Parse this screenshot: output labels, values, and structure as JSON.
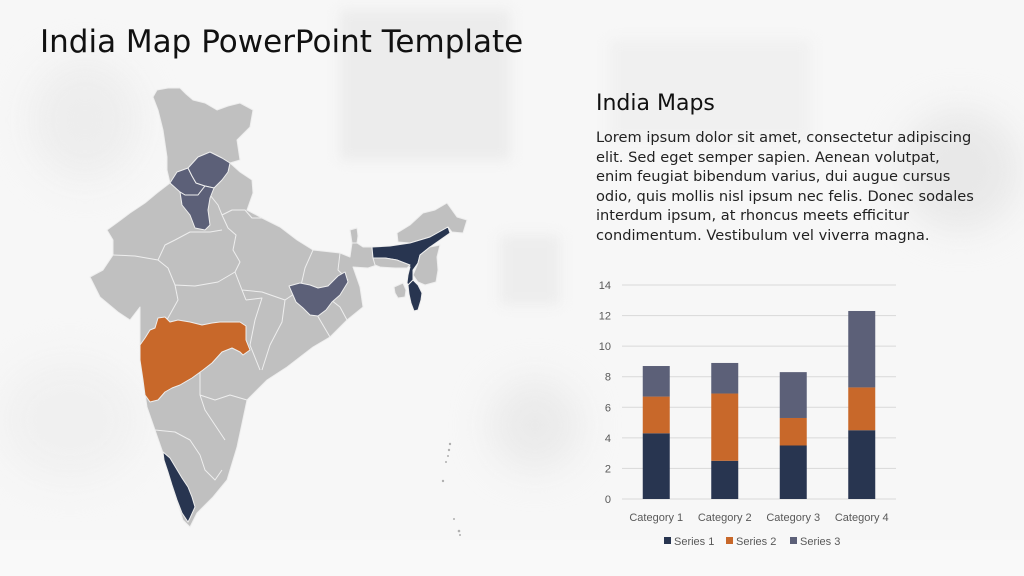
{
  "slide": {
    "title": "India Map PowerPoint Template",
    "section_title": "India Maps",
    "body": "Lorem ipsum dolor sit amet, consectetur adipiscing elit. Sed eget semper sapien. Aenean volutpat, enim feugiat bibendum varius, dui augue cursus odio, quis mollis nisl ipsum nec felis. Donec sodales interdum ipsum, at rhoncus meets efficitur condimentum. Vestibulum vel viverra magna."
  },
  "colors": {
    "map_default": "#c0c0c0",
    "map_border": "#eeeeee",
    "series1": "#283550",
    "series2": "#c8682a",
    "series3": "#5c6078",
    "gridline": "#d9d9d9",
    "axis_text": "#595959"
  },
  "map": {
    "regions": [
      {
        "name": "Jammu and Kashmir",
        "highlight": "none"
      },
      {
        "name": "Himachal Pradesh",
        "highlight": "series3"
      },
      {
        "name": "Punjab",
        "highlight": "series3"
      },
      {
        "name": "Haryana",
        "highlight": "series3"
      },
      {
        "name": "Jharkhand",
        "highlight": "series3"
      },
      {
        "name": "Maharashtra",
        "highlight": "series2"
      },
      {
        "name": "Assam",
        "highlight": "series1"
      },
      {
        "name": "Mizoram",
        "highlight": "series1"
      },
      {
        "name": "Kerala",
        "highlight": "series1"
      }
    ]
  },
  "chart_data": {
    "type": "bar",
    "stacked": true,
    "title": "",
    "xlabel": "",
    "ylabel": "",
    "categories": [
      "Category 1",
      "Category 2",
      "Category 3",
      "Category 4"
    ],
    "series": [
      {
        "name": "Series 1",
        "color": "#283550",
        "values": [
          4.3,
          2.5,
          3.5,
          4.5
        ]
      },
      {
        "name": "Series 2",
        "color": "#c8682a",
        "values": [
          2.4,
          4.4,
          1.8,
          2.8
        ]
      },
      {
        "name": "Series 3",
        "color": "#5c6078",
        "values": [
          2,
          2,
          3,
          5
        ]
      }
    ],
    "ylim": [
      0,
      14
    ],
    "yticks": [
      0,
      2,
      4,
      6,
      8,
      10,
      12,
      14
    ],
    "grid": true,
    "legend_position": "bottom"
  }
}
